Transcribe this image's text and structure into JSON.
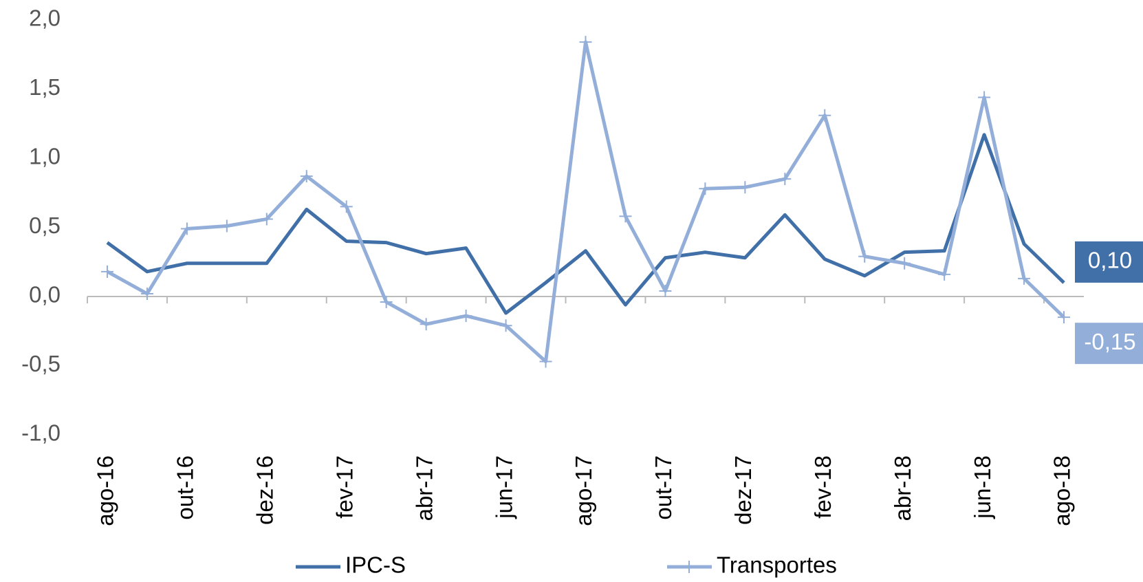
{
  "chart_data": {
    "type": "line",
    "categories": [
      "ago-16",
      null,
      "out-16",
      null,
      "dez-16",
      null,
      "fev-17",
      null,
      "abr-17",
      null,
      "jun-17",
      null,
      "ago-17",
      null,
      "out-17",
      null,
      "dez-17",
      null,
      "fev-18",
      null,
      "abr-18",
      null,
      "jun-18",
      null,
      "ago-18"
    ],
    "series": [
      {
        "name": "IPC-S",
        "color": "#4170a8",
        "values": [
          0.39,
          0.18,
          0.24,
          0.24,
          0.24,
          0.63,
          0.4,
          0.39,
          0.31,
          0.35,
          -0.12,
          0.1,
          0.33,
          -0.06,
          0.28,
          0.32,
          0.28,
          0.59,
          0.27,
          0.15,
          0.32,
          0.33,
          1.17,
          0.38,
          0.1
        ],
        "value_labels": [
          null,
          null,
          null,
          null,
          null,
          null,
          null,
          null,
          null,
          null,
          null,
          null,
          null,
          null,
          null,
          null,
          null,
          null,
          null,
          null,
          null,
          null,
          null,
          null,
          "0,10"
        ]
      },
      {
        "name": "Transportes",
        "color": "#93aed8",
        "values": [
          0.18,
          0.02,
          0.49,
          0.51,
          0.56,
          0.87,
          0.65,
          -0.04,
          -0.2,
          -0.14,
          -0.21,
          -0.47,
          1.84,
          0.58,
          0.04,
          0.78,
          0.79,
          0.85,
          1.31,
          0.29,
          0.24,
          0.16,
          1.44,
          0.13,
          -0.15
        ],
        "value_labels": [
          null,
          null,
          null,
          null,
          null,
          null,
          null,
          null,
          null,
          null,
          null,
          null,
          null,
          null,
          null,
          null,
          null,
          null,
          null,
          null,
          null,
          null,
          null,
          null,
          "-0,15"
        ]
      }
    ],
    "ylim": [
      -1,
      2
    ],
    "yticks": [
      {
        "value": -1,
        "label": "-1,0"
      },
      {
        "value": -0.5,
        "label": "-0,5"
      },
      {
        "value": 0,
        "label": "0,0"
      },
      {
        "value": 0.5,
        "label": "0,5"
      },
      {
        "value": 1,
        "label": "1,0"
      },
      {
        "value": 1.5,
        "label": "1,5"
      },
      {
        "value": 2,
        "label": "2,0"
      }
    ],
    "grid": false,
    "legend": "bottom"
  }
}
